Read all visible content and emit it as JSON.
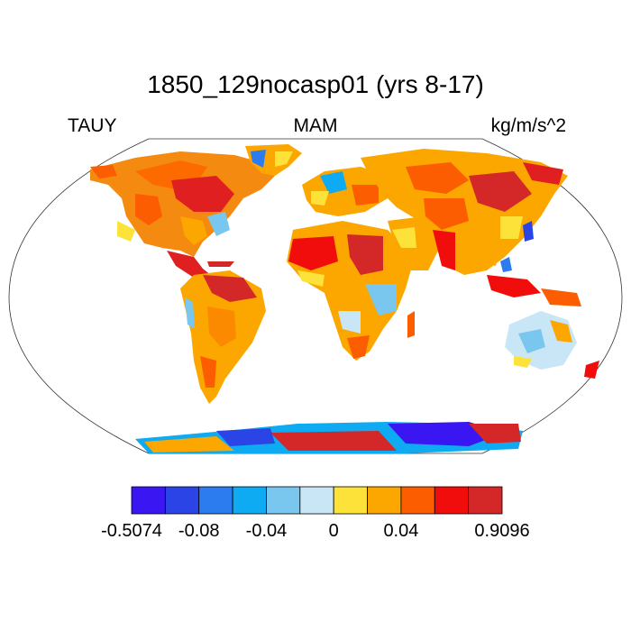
{
  "title": "1850_129nocasp01 (yrs 8-17)",
  "left_label": "TAUY",
  "center_label": "MAM",
  "right_label": "kg/m/s^2",
  "map": {
    "projection": "Robinson",
    "variable": "surface meridional wind stress over land",
    "land_fill_style": "mostly positive values (warm colours), negative values over Antarctica coast, Andes, Australia, Arctic, southeast Africa"
  },
  "colorbar": {
    "colors": [
      "#3a17f2",
      "#2a44e6",
      "#2c7cf0",
      "#0eaaf2",
      "#79c7ee",
      "#c9e6f6",
      "#fde23a",
      "#fca600",
      "#fc5d00",
      "#f20d0d",
      "#d42828"
    ],
    "tick_labels": [
      "-0.5074",
      "-0.08",
      "-0.04",
      "0",
      "0.04",
      "0.9096"
    ],
    "tick_positions_boxes": [
      0,
      2,
      4,
      6,
      8,
      11
    ],
    "range": [
      -0.5074,
      0.9096
    ]
  }
}
